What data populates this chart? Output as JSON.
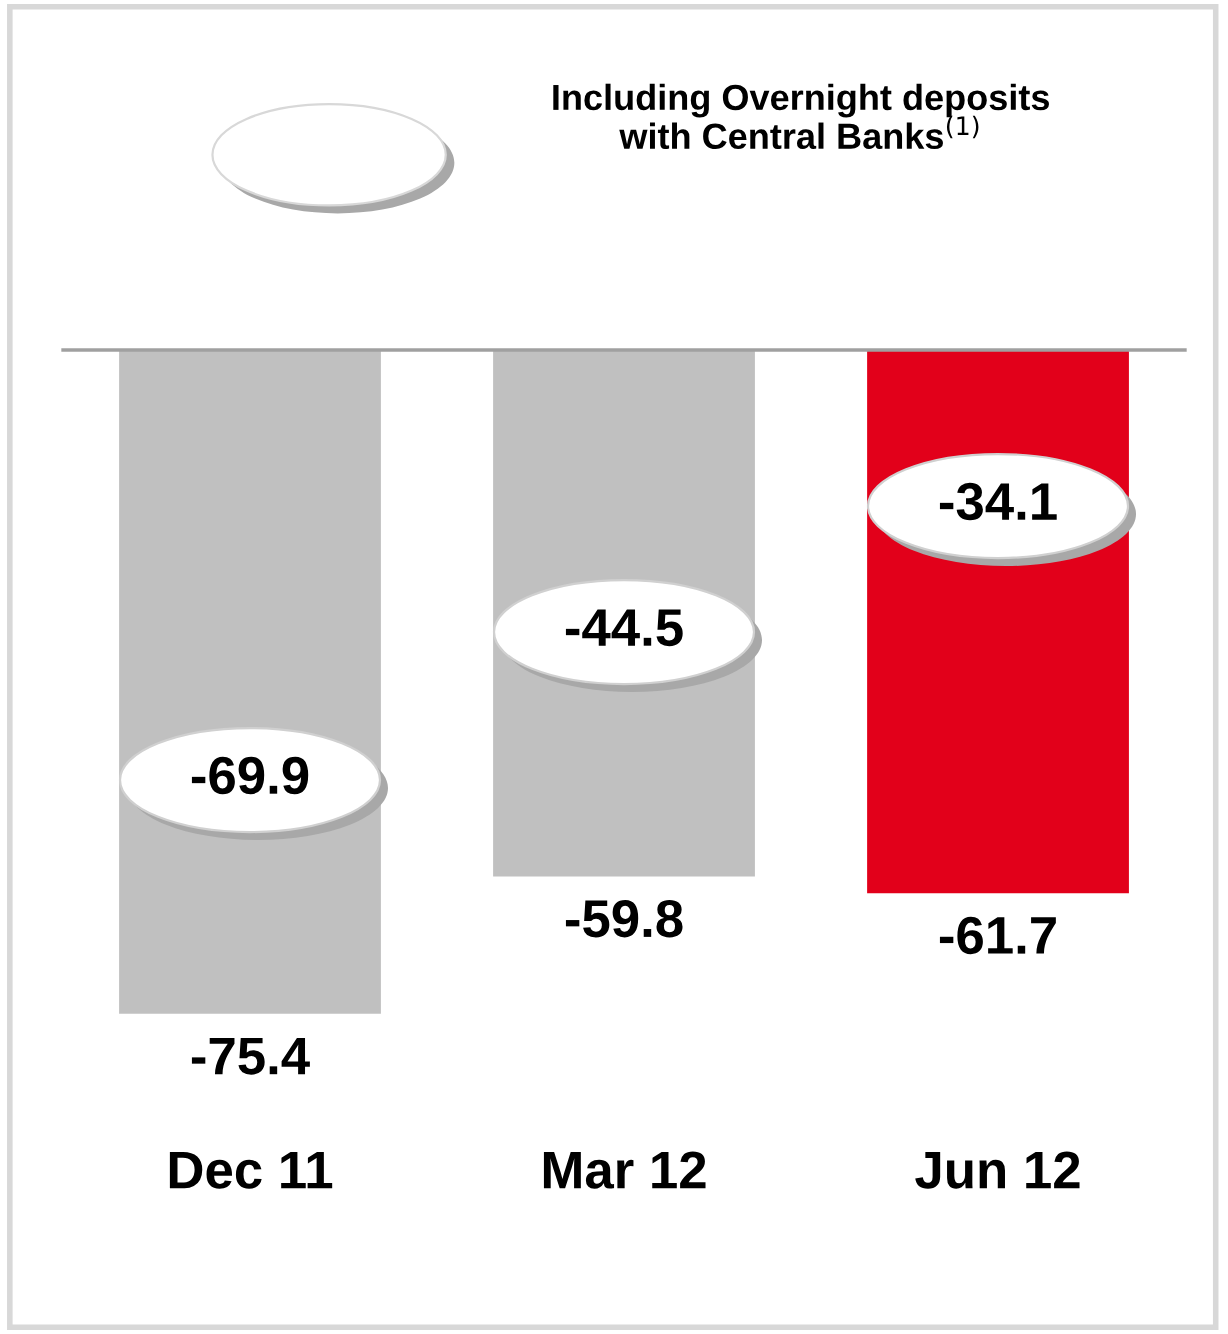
{
  "chart_data": {
    "type": "bar",
    "categories": [
      "Dec 11",
      "Mar 12",
      "Jun 12"
    ],
    "values": [
      -75.4,
      -59.8,
      -61.7
    ],
    "colors": [
      "#c0c0c0",
      "#c0c0c0",
      "#e2001a"
    ],
    "data_labels": true,
    "tick_labels": "x",
    "grid": false,
    "annotations": [
      "Including Overnight deposits\nwith Central Banks$^{(1)}$",
      "-69.9",
      "-44.5",
      "-34.1"
    ]
  }
}
